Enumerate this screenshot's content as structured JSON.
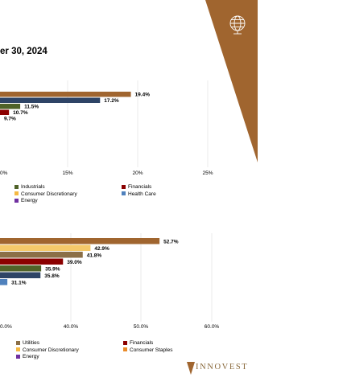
{
  "header": {
    "title": "er 30, 2024",
    "brand_color": "#A0652F",
    "logo_text": "INNOVEST"
  },
  "chart_data": [
    {
      "type": "bar",
      "orientation": "horizontal",
      "x_ticks": [
        "0%",
        "15%",
        "20%",
        "25%"
      ],
      "bars": [
        {
          "label": "19.4%",
          "value": 19.4,
          "color": "#A0652F"
        },
        {
          "label": "17.2%",
          "value": 17.2,
          "color": "#2E4466"
        },
        {
          "label": "11.5%",
          "value": 11.5,
          "color": "#4F6228"
        },
        {
          "label": "10.7%",
          "value": 10.7,
          "color": "#8B0000"
        },
        {
          "label": "9.7%",
          "value": 9.7,
          "color": "#7F6A9B"
        }
      ],
      "legend": [
        {
          "label": "Industrials",
          "color": "#4F6228"
        },
        {
          "label": "Financials",
          "color": "#8B0000"
        },
        {
          "label": "Consumer Discretionary",
          "color": "#F5B942"
        },
        {
          "label": "Health Care",
          "color": "#4F81BD"
        },
        {
          "label": "Energy",
          "color": "#7030A0"
        }
      ]
    },
    {
      "type": "bar",
      "orientation": "horizontal",
      "x_ticks": [
        "0.0%",
        "40.0%",
        "50.0%",
        "60.0%"
      ],
      "bars": [
        {
          "label": "52.7%",
          "value": 52.7,
          "color": "#A0652F"
        },
        {
          "label": "42.9%",
          "value": 42.9,
          "color": "#F5C96A"
        },
        {
          "label": "41.8%",
          "value": 41.8,
          "color": "#8B6F47"
        },
        {
          "label": "39.0%",
          "value": 39.0,
          "color": "#8B0000"
        },
        {
          "label": "35.9%",
          "value": 35.9,
          "color": "#4F6228"
        },
        {
          "label": "35.8%",
          "value": 35.8,
          "color": "#2E4466"
        },
        {
          "label": "31.1%",
          "value": 31.1,
          "color": "#4F81BD"
        }
      ],
      "legend": [
        {
          "label": "Utilities",
          "color": "#8B6F47"
        },
        {
          "label": "Financials",
          "color": "#8B0000"
        },
        {
          "label": "Consumer Discretionary",
          "color": "#F5B942"
        },
        {
          "label": "Consumer Staples",
          "color": "#E98B2A"
        },
        {
          "label": "Energy",
          "color": "#7030A0"
        }
      ]
    }
  ]
}
